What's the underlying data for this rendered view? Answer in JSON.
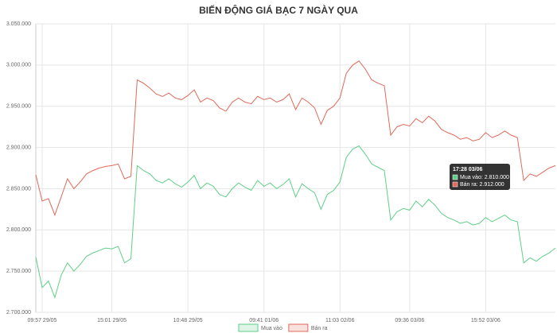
{
  "chart_data": {
    "type": "line",
    "title": "BIẾN ĐỘNG GIÁ BẠC 7 NGÀY QUA",
    "categories": [
      null,
      "09:57 29/05",
      null,
      null,
      null,
      null,
      null,
      null,
      null,
      null,
      null,
      null,
      "15:01 29/05",
      null,
      null,
      null,
      null,
      null,
      null,
      null,
      null,
      null,
      null,
      null,
      "10:48 29/05",
      null,
      null,
      null,
      null,
      null,
      null,
      null,
      null,
      null,
      null,
      null,
      "09:41 01/06",
      null,
      null,
      null,
      null,
      null,
      null,
      null,
      null,
      null,
      null,
      null,
      "11:03 02/06",
      null,
      null,
      null,
      null,
      null,
      null,
      null,
      null,
      null,
      null,
      "09:36 03/06",
      null,
      null,
      null,
      null,
      null,
      null,
      null,
      null,
      null,
      null,
      null,
      "15:52 03/06",
      null,
      null,
      null,
      null,
      null,
      null,
      null,
      null,
      null,
      null,
      null
    ],
    "series": [
      {
        "name": "Mua vào",
        "color": "#5fcf88",
        "values": [
          2767000,
          2730000,
          2738000,
          2718000,
          2745000,
          2760000,
          2750000,
          2758000,
          2768000,
          2772000,
          2775000,
          2778000,
          2777000,
          2780000,
          2760000,
          2765000,
          2878000,
          2872000,
          2868000,
          2860000,
          2857000,
          2862000,
          2856000,
          2852000,
          2858000,
          2866000,
          2850000,
          2857000,
          2853000,
          2843000,
          2840000,
          2850000,
          2857000,
          2852000,
          2848000,
          2860000,
          2853000,
          2857000,
          2850000,
          2855000,
          2862000,
          2840000,
          2856000,
          2850000,
          2845000,
          2825000,
          2843000,
          2848000,
          2858000,
          2888000,
          2898000,
          2902000,
          2892000,
          2880000,
          2876000,
          2872000,
          2812000,
          2822000,
          2826000,
          2824000,
          2835000,
          2828000,
          2837000,
          2830000,
          2820000,
          2815000,
          2812000,
          2808000,
          2810000,
          2806000,
          2808000,
          2815000,
          2810000,
          2814000,
          2818000,
          2812000,
          2810000,
          2760000,
          2766000,
          2762000,
          2768000,
          2772000,
          2778000
        ]
      },
      {
        "name": "Bán ra",
        "color": "#e0695a",
        "values": [
          2867000,
          2835000,
          2838000,
          2818000,
          2840000,
          2862000,
          2850000,
          2858000,
          2868000,
          2872000,
          2875000,
          2877000,
          2878000,
          2880000,
          2862000,
          2865000,
          2982000,
          2978000,
          2972000,
          2965000,
          2962000,
          2966000,
          2960000,
          2958000,
          2963000,
          2970000,
          2955000,
          2960000,
          2957000,
          2948000,
          2944000,
          2955000,
          2960000,
          2955000,
          2953000,
          2962000,
          2958000,
          2960000,
          2955000,
          2958000,
          2965000,
          2946000,
          2960000,
          2955000,
          2948000,
          2928000,
          2945000,
          2950000,
          2960000,
          2990000,
          3000000,
          3005000,
          2995000,
          2982000,
          2978000,
          2975000,
          2915000,
          2925000,
          2928000,
          2926000,
          2935000,
          2930000,
          2938000,
          2932000,
          2922000,
          2918000,
          2915000,
          2910000,
          2912000,
          2908000,
          2910000,
          2918000,
          2912000,
          2915000,
          2920000,
          2915000,
          2912000,
          2860000,
          2868000,
          2865000,
          2870000,
          2875000,
          2878000
        ]
      }
    ],
    "ylim": [
      2700000,
      3050000
    ],
    "yticks": [
      {
        "value": 2700000,
        "label": "2.700.000"
      },
      {
        "value": 2750000,
        "label": "2.750.000"
      },
      {
        "value": 2800000,
        "label": "2.800.000"
      },
      {
        "value": 2850000,
        "label": "2.850.000"
      },
      {
        "value": 2900000,
        "label": "2.900.000"
      },
      {
        "value": 2950000,
        "label": "2.950.000"
      },
      {
        "value": 3000000,
        "label": "3.000.000"
      },
      {
        "value": 3050000,
        "label": "3.050.000"
      }
    ],
    "grid": true,
    "legend": "bottom",
    "tooltip": {
      "title": "17:28 03/06",
      "lines": [
        "Mua vào: 2.810.000",
        "Bán ra: 2.912.000"
      ]
    }
  }
}
